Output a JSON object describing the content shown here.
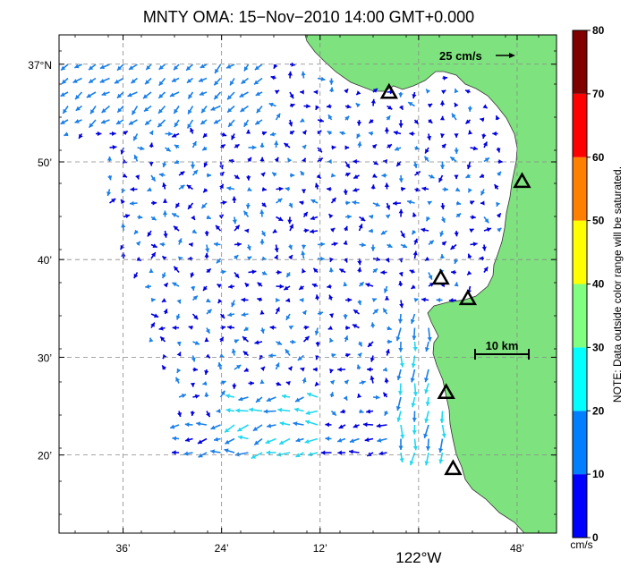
{
  "chart_data": {
    "type": "vector-field",
    "title": "MNTY OMA: 15−Nov−2010 14:00 GMT+0.000",
    "x_ticks": [
      {
        "label": "36’",
        "lon": -122.6
      },
      {
        "label": "24’",
        "lon": -122.4
      },
      {
        "label": "12’",
        "lon": -122.2
      },
      {
        "label": "122°W",
        "lon": -122.0
      },
      {
        "label": "48’",
        "lon": -121.8
      }
    ],
    "y_ticks": [
      {
        "label": "37°N",
        "lat": 37.0
      },
      {
        "label": "50’",
        "lat": 36.8333
      },
      {
        "label": "40’",
        "lat": 36.6667
      },
      {
        "label": "30’",
        "lat": 36.5
      },
      {
        "label": "20’",
        "lat": 36.3333
      }
    ],
    "xlim_lon": [
      -122.73,
      -121.72
    ],
    "ylim_lat": [
      36.2,
      37.05
    ],
    "grid": true,
    "speed_scale_label": "25 cm/s",
    "distance_scale_label": "10 km",
    "colorbar": {
      "ticks": [
        0,
        10,
        20,
        30,
        40,
        50,
        60,
        70,
        80
      ],
      "unit": "cm/s",
      "colors": [
        "#0000ff",
        "#0080ff",
        "#00ffff",
        "#80ff80",
        "#ffff00",
        "#ff8000",
        "#ff0000",
        "#800000"
      ],
      "note": "NOTE: Data outside color range will be saturated."
    },
    "land_color": "#7ee37e",
    "stations": [
      {
        "lon": -122.06,
        "lat": 36.952
      },
      {
        "lon": -121.79,
        "lat": 36.8
      },
      {
        "lon": -121.955,
        "lat": 36.635
      },
      {
        "lon": -121.9,
        "lat": 36.6
      },
      {
        "lon": -121.944,
        "lat": 36.44
      },
      {
        "lon": -121.93,
        "lat": 36.31
      }
    ]
  }
}
